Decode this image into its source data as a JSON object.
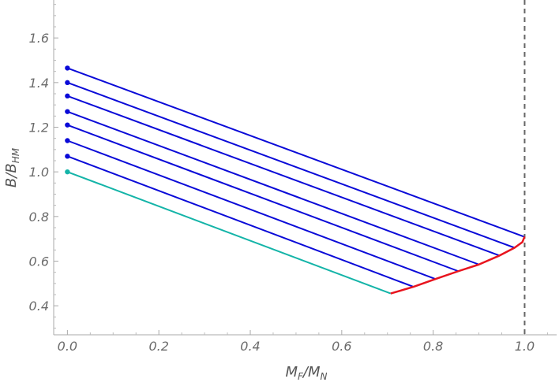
{
  "chart_data": {
    "type": "line",
    "title": "",
    "xlabel": {
      "base": "M",
      "sub": "F",
      "sep": "/",
      "base2": "M",
      "sub2": "N"
    },
    "ylabel": {
      "base": "B",
      "sep": "/",
      "base2": "B",
      "sub2": "HM"
    },
    "xlim": [
      -0.03,
      1.07
    ],
    "ylim": [
      0.27,
      1.77
    ],
    "x_ticks": [
      0.0,
      0.2,
      0.4,
      0.6,
      0.8,
      1.0
    ],
    "x_tick_labels": [
      "0.0",
      "0.2",
      "0.4",
      "0.6",
      "0.8",
      "1.0"
    ],
    "y_ticks": [
      0.4,
      0.6,
      0.8,
      1.0,
      1.2,
      1.4,
      1.6
    ],
    "y_tick_labels": [
      "0.4",
      "0.6",
      "0.8",
      "1.0",
      "1.2",
      "1.4",
      "1.6"
    ],
    "reference_line": {
      "x": 1.0,
      "style": "dashed",
      "color": "#666666"
    },
    "colors": {
      "blue": "#0a0ad8",
      "cyan": "#14b4a8",
      "red": "#e8141e",
      "axis": "#aaaaaa"
    },
    "series": [
      {
        "color": "#14b4a8",
        "x": [
          0.0,
          0.707
        ],
        "y": [
          1.0,
          0.455
        ],
        "start_marker": true
      },
      {
        "color": "#0a0ad8",
        "x": [
          0.0,
          0.757
        ],
        "y": [
          1.07,
          0.485
        ],
        "start_marker": true
      },
      {
        "color": "#0a0ad8",
        "x": [
          0.0,
          0.805
        ],
        "y": [
          1.14,
          0.52
        ],
        "start_marker": true
      },
      {
        "color": "#0a0ad8",
        "x": [
          0.0,
          0.855
        ],
        "y": [
          1.21,
          0.555
        ],
        "start_marker": true
      },
      {
        "color": "#0a0ad8",
        "x": [
          0.0,
          0.9
        ],
        "y": [
          1.27,
          0.585
        ],
        "start_marker": true
      },
      {
        "color": "#0a0ad8",
        "x": [
          0.0,
          0.945
        ],
        "y": [
          1.34,
          0.625
        ],
        "start_marker": true
      },
      {
        "color": "#0a0ad8",
        "x": [
          0.0,
          0.978
        ],
        "y": [
          1.4,
          0.66
        ],
        "start_marker": true
      },
      {
        "color": "#0a0ad8",
        "x": [
          0.0,
          0.998
        ],
        "y": [
          1.465,
          0.71
        ],
        "start_marker": true
      },
      {
        "color": "#e8141e",
        "x": [
          0.707,
          0.757,
          0.805,
          0.855,
          0.9,
          0.945,
          0.978,
          0.995,
          1.0
        ],
        "y": [
          0.455,
          0.485,
          0.52,
          0.555,
          0.585,
          0.625,
          0.66,
          0.685,
          0.71
        ],
        "start_marker": false
      }
    ]
  }
}
